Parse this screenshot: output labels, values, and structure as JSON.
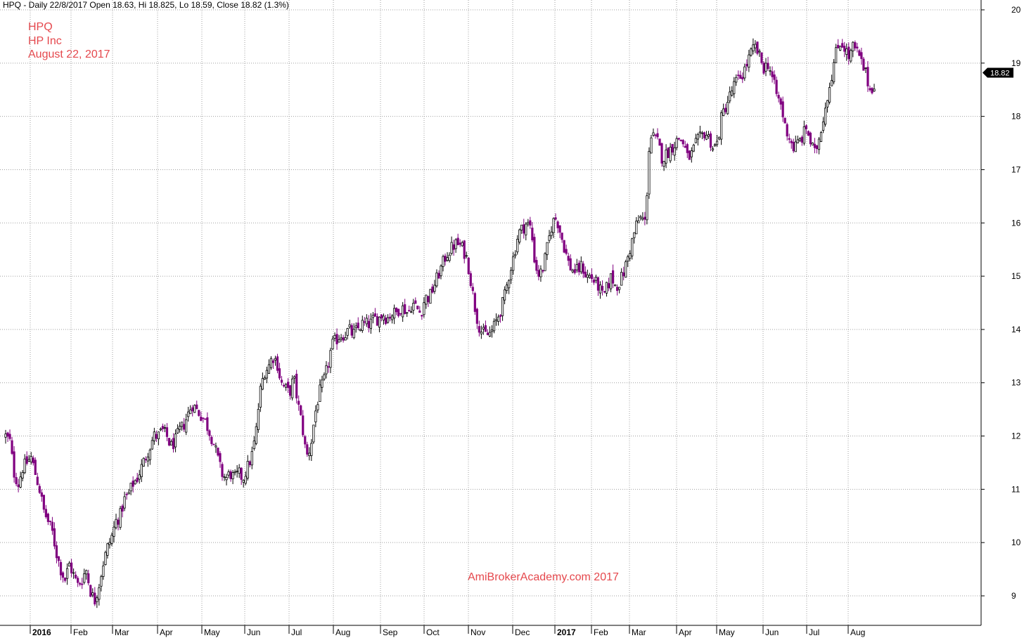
{
  "header": {
    "text": "HPQ - Daily 22/8/2017 Open 18.63, Hi 18.825, Lo 18.59, Close 18.82 (1.3%)"
  },
  "titles": {
    "ticker": "HPQ",
    "company": "HP Inc",
    "date": "August 22, 2017"
  },
  "watermark": "AmiBrokerAcademy.com  2017",
  "colors": {
    "up_candle": "#000000",
    "down_candle": "#800080",
    "grid": "#a0a0a0",
    "title_text": "#e5484d",
    "last_price_box": "#000000"
  },
  "chart_data": {
    "type": "candlestick",
    "ylim": [
      8.5,
      20.2
    ],
    "y_ticks": [
      9,
      10,
      11,
      12,
      13,
      14,
      15,
      16,
      17,
      18,
      19,
      20
    ],
    "x_ticks": [
      {
        "label": "2016",
        "bold": true
      },
      {
        "label": "Feb",
        "bold": false
      },
      {
        "label": "Mar",
        "bold": false
      },
      {
        "label": "Apr",
        "bold": false
      },
      {
        "label": "May",
        "bold": false
      },
      {
        "label": "Jun",
        "bold": false
      },
      {
        "label": "Jul",
        "bold": false
      },
      {
        "label": "Aug",
        "bold": false
      },
      {
        "label": "Sep",
        "bold": false
      },
      {
        "label": "Oct",
        "bold": false
      },
      {
        "label": "Nov",
        "bold": false
      },
      {
        "label": "Dec",
        "bold": false
      },
      {
        "label": "2017",
        "bold": true
      },
      {
        "label": "Feb",
        "bold": false
      },
      {
        "label": "Mar",
        "bold": false
      },
      {
        "label": "Apr",
        "bold": false
      },
      {
        "label": "May",
        "bold": false
      },
      {
        "label": "Jun",
        "bold": false
      },
      {
        "label": "Jul",
        "bold": false
      },
      {
        "label": "Aug",
        "bold": false
      }
    ],
    "grid": true,
    "last_price": 18.82,
    "last_price_label": "18.82",
    "close_path": [
      12.0,
      11.9,
      11.3,
      11.1,
      11.4,
      11.5,
      11.6,
      11.3,
      11.0,
      10.6,
      10.4,
      10.2,
      9.8,
      9.5,
      9.3,
      9.6,
      9.4,
      9.2,
      9.3,
      9.5,
      9.1,
      8.9,
      9.2,
      9.6,
      9.9,
      10.1,
      10.4,
      10.5,
      10.8,
      10.9,
      11.1,
      11.2,
      11.4,
      11.6,
      11.8,
      12.0,
      12.0,
      12.1,
      12.0,
      11.8,
      11.9,
      12.1,
      12.2,
      12.4,
      12.6,
      12.5,
      12.4,
      12.3,
      12.1,
      11.9,
      11.6,
      11.3,
      11.2,
      11.3,
      11.2,
      11.3,
      11.2,
      11.4,
      11.6,
      12.0,
      12.8,
      13.2,
      13.3,
      13.5,
      13.4,
      13.0,
      12.9,
      12.8,
      13.1,
      12.6,
      12.2,
      11.6,
      11.8,
      12.4,
      12.8,
      13.0,
      13.3,
      13.7,
      13.8,
      13.9,
      13.9,
      14.0,
      13.9,
      14.0,
      14.1,
      14.1,
      14.1,
      14.2,
      14.2,
      14.3,
      14.2,
      14.3,
      14.3,
      14.4,
      14.4,
      14.3,
      14.5,
      14.4,
      14.3,
      14.6,
      14.6,
      14.8,
      15.0,
      15.2,
      15.4,
      15.5,
      15.6,
      15.6,
      15.5,
      15.3,
      14.8,
      14.3,
      14.0,
      13.9,
      13.9,
      14.0,
      14.2,
      14.4,
      14.7,
      15.1,
      15.4,
      15.8,
      15.9,
      16.0,
      15.9,
      15.2,
      15.0,
      15.2,
      15.6,
      16.0,
      16.1,
      15.8,
      15.5,
      15.2,
      15.1,
      15.1,
      15.2,
      15.0,
      15.0,
      14.9,
      14.8,
      14.6,
      14.8,
      15.0,
      14.8,
      14.9,
      15.1,
      15.4,
      15.7,
      16.0,
      16.1,
      16.0,
      17.6,
      17.6,
      17.5,
      17.2,
      17.3,
      17.4,
      17.5,
      17.6,
      17.5,
      17.2,
      17.3,
      17.5,
      17.6,
      17.7,
      17.6,
      17.4,
      17.5,
      18.0,
      18.2,
      18.4,
      18.6,
      18.7,
      18.8,
      19.0,
      19.2,
      19.3,
      19.1,
      18.9,
      19.0,
      18.7,
      18.4,
      18.2,
      17.8,
      17.6,
      17.4,
      17.5,
      17.6,
      17.8,
      17.5,
      17.3,
      17.6,
      18.0,
      18.4,
      18.8,
      19.2,
      19.4,
      19.3,
      19.1,
      19.3,
      19.2,
      19.0,
      18.8,
      18.5,
      18.6
    ]
  }
}
